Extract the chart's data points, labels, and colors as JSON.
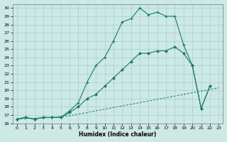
{
  "xlabel": "Humidex (Indice chaleur)",
  "background_color": "#cce9e5",
  "grid_color": "#aacfc8",
  "line_color": "#1a7a6e",
  "xlim": [
    -0.5,
    23.5
  ],
  "ylim": [
    16,
    30.5
  ],
  "xticks": [
    0,
    1,
    2,
    3,
    4,
    5,
    6,
    7,
    8,
    9,
    10,
    11,
    12,
    13,
    14,
    15,
    16,
    17,
    18,
    19,
    20,
    21,
    22,
    23
  ],
  "yticks": [
    16,
    17,
    18,
    19,
    20,
    21,
    22,
    23,
    24,
    25,
    26,
    27,
    28,
    29,
    30
  ],
  "curve1_x": [
    0,
    1,
    2,
    3,
    4,
    5,
    6,
    7,
    8,
    9,
    10,
    11,
    12,
    13,
    14,
    15,
    16,
    17,
    18,
    19,
    20,
    21,
    22
  ],
  "curve1_y": [
    16.5,
    16.7,
    16.5,
    16.7,
    16.7,
    16.7,
    17.5,
    18.5,
    21.0,
    23.0,
    24.0,
    26.0,
    28.3,
    28.7,
    30.0,
    29.2,
    29.5,
    29.0,
    29.0,
    25.5,
    23.0,
    17.8,
    20.5
  ],
  "curve2_x": [
    0,
    1,
    2,
    3,
    4,
    5,
    6,
    7,
    8,
    9,
    10,
    11,
    12,
    13,
    14,
    15,
    16,
    17,
    18,
    19,
    20,
    21,
    22
  ],
  "curve2_y": [
    16.5,
    16.7,
    16.5,
    16.7,
    16.7,
    16.7,
    17.3,
    18.0,
    19.0,
    19.5,
    20.5,
    21.5,
    22.5,
    23.5,
    24.5,
    24.5,
    24.8,
    24.8,
    25.3,
    24.5,
    23.0,
    17.8,
    20.5
  ],
  "curve3_x": [
    0,
    1,
    2,
    3,
    4,
    5,
    6,
    7,
    8,
    9,
    10,
    11,
    12,
    13,
    14,
    15,
    16,
    17,
    18,
    19,
    20,
    21,
    22,
    23
  ],
  "curve3_y": [
    16.5,
    16.55,
    16.6,
    16.65,
    16.7,
    16.8,
    16.9,
    17.1,
    17.3,
    17.5,
    17.7,
    17.9,
    18.1,
    18.3,
    18.5,
    18.7,
    18.9,
    19.1,
    19.3,
    19.5,
    19.7,
    19.9,
    20.1,
    20.3
  ]
}
